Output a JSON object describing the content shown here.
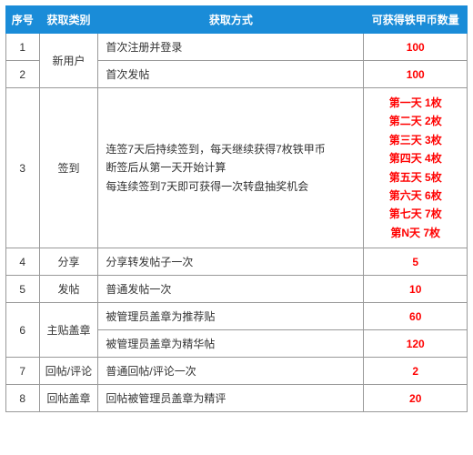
{
  "header": {
    "idx": "序号",
    "category": "获取类别",
    "way": "获取方式",
    "count": "可获得铁甲币数量"
  },
  "colors": {
    "header_bg": "#1a8cd8",
    "header_text": "#ffffff",
    "border": "#999999",
    "count_text": "#ff0000"
  },
  "rows": {
    "r1": {
      "idx": "1",
      "way": "首次注册并登录",
      "count": "100"
    },
    "r2": {
      "idx": "2",
      "way": "首次发帖",
      "count": "100"
    },
    "r1_2_cat": "新用户",
    "r3": {
      "idx": "3",
      "cat": "签到",
      "way_l1": "连签7天后持续签到，每天继续获得7枚铁甲币",
      "way_l2": "断签后从第一天开始计算",
      "way_l3": "每连续签到7天即可获得一次转盘抽奖机会",
      "cnt_l1": "第一天 1枚",
      "cnt_l2": "第二天 2枚",
      "cnt_l3": "第三天 3枚",
      "cnt_l4": "第四天 4枚",
      "cnt_l5": "第五天 5枚",
      "cnt_l6": "第六天 6枚",
      "cnt_l7": "第七天 7枚",
      "cnt_l8": "第N天 7枚"
    },
    "r4": {
      "idx": "4",
      "cat": "分享",
      "way": "分享转发帖子一次",
      "count": "5"
    },
    "r5": {
      "idx": "5",
      "cat": "发帖",
      "way": "普通发帖一次",
      "count": "10"
    },
    "r6a": {
      "idx": "6",
      "cat": "主贴盖章",
      "way": "被管理员盖章为推荐贴",
      "count": "60"
    },
    "r6b": {
      "way": "被管理员盖章为精华帖",
      "count": "120"
    },
    "r7": {
      "idx": "7",
      "cat": "回帖/评论",
      "way": "普通回帖/评论一次",
      "count": "2"
    },
    "r8": {
      "idx": "8",
      "cat": "回帖盖章",
      "way": "回帖被管理员盖章为精评",
      "count": "20"
    }
  }
}
